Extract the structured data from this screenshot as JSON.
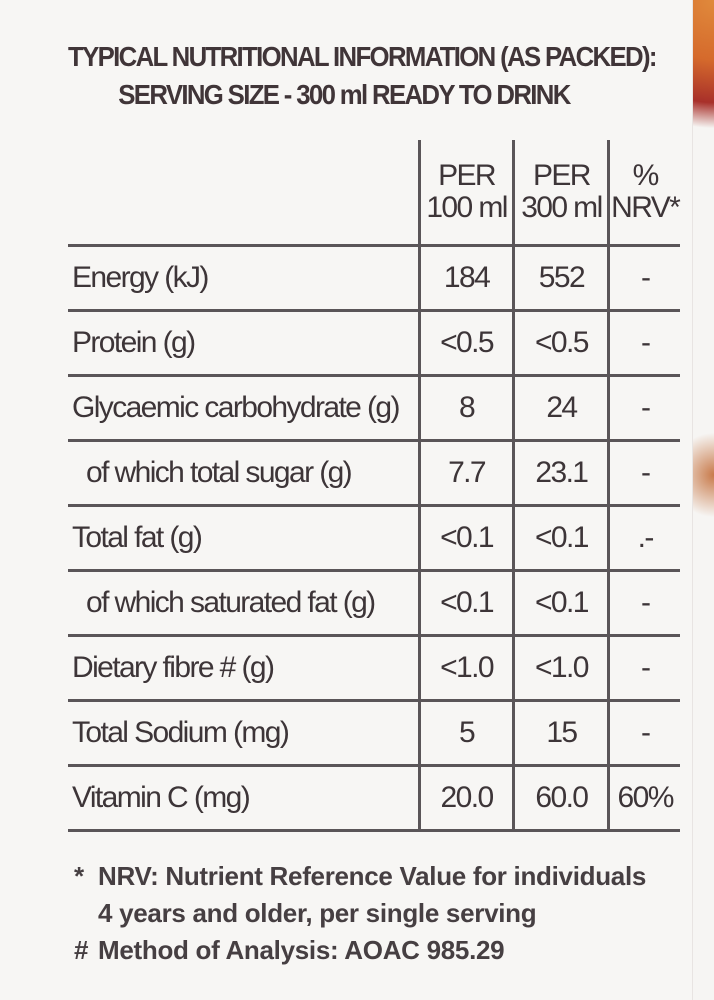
{
  "header": {
    "line1": "TYPICAL NUTRITIONAL INFORMATION (AS PACKED):",
    "line2": "SERVING SIZE - 300 ml READY TO DRINK"
  },
  "columns": {
    "per100_line1": "PER",
    "per100_line2": "100 ml",
    "per300_line1": "PER",
    "per300_line2": "300 ml",
    "nrv_line1": "%",
    "nrv_line2": "NRV*"
  },
  "rows": [
    {
      "label": "Energy (kJ)",
      "per100": "184",
      "per300": "552",
      "nrv": "-"
    },
    {
      "label": "Protein (g)",
      "per100": "<0.5",
      "per300": "<0.5",
      "nrv": "-"
    },
    {
      "label": "Glycaemic carbohydrate (g)",
      "per100": "8",
      "per300": "24",
      "nrv": "-"
    },
    {
      "label": "of which total sugar (g)",
      "per100": "7.7",
      "per300": "23.1",
      "nrv": "-"
    },
    {
      "label": "Total fat (g)",
      "per100": "<0.1",
      "per300": "<0.1",
      "nrv": ".-"
    },
    {
      "label": "of which saturated fat (g)",
      "per100": "<0.1",
      "per300": "<0.1",
      "nrv": "-"
    },
    {
      "label": "Dietary fibre # (g)",
      "per100": "<1.0",
      "per300": "<1.0",
      "nrv": "-"
    },
    {
      "label": "Total Sodium (mg)",
      "per100": "5",
      "per300": "15",
      "nrv": "-"
    },
    {
      "label": "Vitamin C (mg)",
      "per100": "20.0",
      "per300": "60.0",
      "nrv": "60%"
    }
  ],
  "footnotes": {
    "nrv_symbol": "*",
    "nrv_line1": "NRV: Nutrient Reference Value for individuals",
    "nrv_line2": "4 years and older, per single serving",
    "method_symbol": "#",
    "method_text": "Method of Analysis: AOAC 985.29"
  }
}
